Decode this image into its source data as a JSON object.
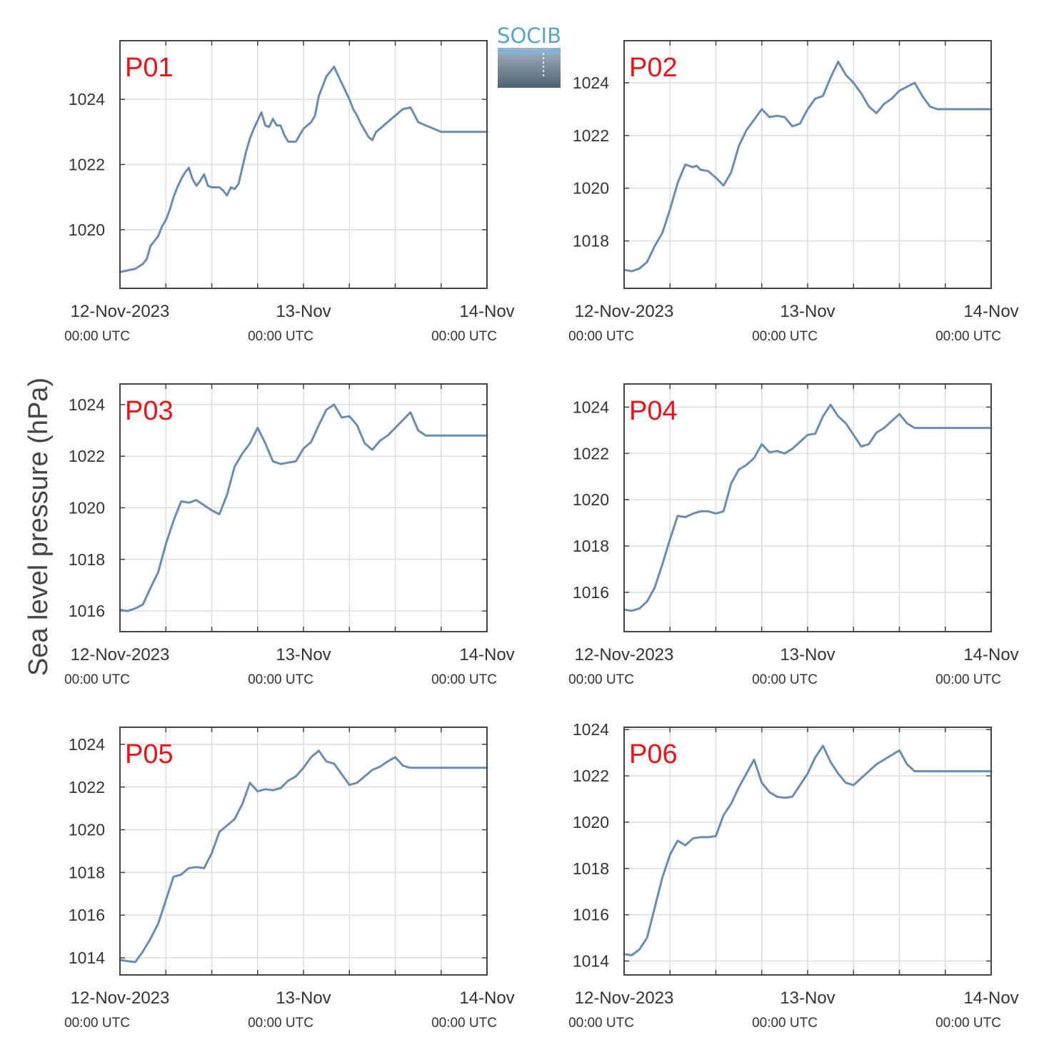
{
  "figure": {
    "ylabel": "Sea level pressure (hPa)",
    "logo_text": "SOCIB"
  },
  "colors": {
    "line": "#6a8cb0",
    "panel_label": "#e3141c",
    "grid": "#dcdcdc",
    "frame": "#444444"
  },
  "chart_data": [
    {
      "type": "line",
      "name": "P01",
      "ylim": [
        1018.2,
        1025.8
      ],
      "yticks": [
        1020,
        1022,
        1024
      ],
      "xlim": [
        0,
        48
      ],
      "xticks": [
        {
          "x": 0,
          "label": "12-Nov-2023",
          "sub": "00:00 UTC"
        },
        {
          "x": 24,
          "label": "13-Nov",
          "sub": "00:00 UTC"
        },
        {
          "x": 48,
          "label": "14-Nov",
          "sub": "00:00 UTC"
        }
      ],
      "x": [
        0,
        1,
        2,
        3,
        3.5,
        4,
        5,
        5.5,
        6,
        6.5,
        7,
        7.5,
        8,
        8.5,
        9,
        9.5,
        10,
        10.5,
        11,
        11.5,
        12,
        12.5,
        13,
        13.5,
        14,
        14.5,
        15,
        15.5,
        16,
        16.5,
        17,
        17.5,
        18,
        18.5,
        19,
        19.5,
        20,
        20.5,
        21,
        21.5,
        22,
        22.5,
        23,
        24,
        25,
        25.5,
        26,
        27,
        28,
        29,
        30,
        30.5,
        31,
        31.5,
        32,
        32.5,
        33,
        33.5,
        34,
        35,
        36,
        37,
        38,
        39,
        40,
        41,
        42,
        43,
        44,
        45,
        45.5,
        46,
        47,
        48
      ],
      "y": [
        1018.7,
        1018.75,
        1018.8,
        1018.95,
        1019.1,
        1019.5,
        1019.8,
        1020.1,
        1020.3,
        1020.6,
        1021.0,
        1021.3,
        1021.55,
        1021.75,
        1021.9,
        1021.55,
        1021.35,
        1021.5,
        1021.7,
        1021.35,
        1021.3,
        1021.3,
        1021.3,
        1021.2,
        1021.05,
        1021.3,
        1021.25,
        1021.4,
        1021.9,
        1022.4,
        1022.8,
        1023.1,
        1023.35,
        1023.6,
        1023.2,
        1023.15,
        1023.4,
        1023.2,
        1023.2,
        1022.9,
        1022.7,
        1022.7,
        1022.7,
        1023.1,
        1023.3,
        1023.5,
        1024.1,
        1024.7,
        1025.0,
        1024.5,
        1024.0,
        1023.7,
        1023.5,
        1023.25,
        1023.05,
        1022.85,
        1022.75,
        1023.0,
        1023.1,
        1023.3,
        1023.5,
        1023.7,
        1023.75,
        1023.3,
        1023.2,
        1023.1,
        1023.0,
        1023.0,
        1023.0,
        1023.0,
        1023.0,
        1023.0,
        1023.0,
        1023.0
      ]
    },
    {
      "type": "line",
      "name": "P02",
      "ylim": [
        1016.2,
        1025.6
      ],
      "yticks": [
        1018,
        1020,
        1022,
        1024
      ],
      "xlim": [
        0,
        48
      ],
      "xticks": [
        {
          "x": 0,
          "label": "12-Nov-2023",
          "sub": "00:00 UTC"
        },
        {
          "x": 24,
          "label": "13-Nov",
          "sub": "00:00 UTC"
        },
        {
          "x": 48,
          "label": "14-Nov",
          "sub": "00:00 UTC"
        }
      ],
      "x": [
        0,
        1,
        2,
        3,
        4,
        5,
        6,
        7,
        8,
        9,
        9.5,
        10,
        11,
        12,
        13,
        14,
        15,
        16,
        17,
        18,
        19,
        20,
        21,
        22,
        23,
        24,
        25,
        26,
        27,
        28,
        29,
        30,
        31,
        32,
        33,
        34,
        35,
        36,
        37,
        38,
        39,
        40,
        41,
        42,
        43,
        44,
        45,
        46,
        47,
        48
      ],
      "y": [
        1016.9,
        1016.85,
        1016.95,
        1017.2,
        1017.8,
        1018.3,
        1019.2,
        1020.2,
        1020.9,
        1020.8,
        1020.85,
        1020.7,
        1020.65,
        1020.4,
        1020.1,
        1020.6,
        1021.6,
        1022.2,
        1022.6,
        1023.0,
        1022.7,
        1022.75,
        1022.7,
        1022.35,
        1022.45,
        1023.0,
        1023.4,
        1023.5,
        1024.2,
        1024.8,
        1024.3,
        1024.0,
        1023.6,
        1023.1,
        1022.85,
        1023.2,
        1023.4,
        1023.7,
        1023.85,
        1024.0,
        1023.5,
        1023.1,
        1023.0,
        1023.0,
        1023.0,
        1023.0,
        1023.0,
        1023.0,
        1023.0,
        1023.0
      ]
    },
    {
      "type": "line",
      "name": "P03",
      "ylim": [
        1015.2,
        1024.8
      ],
      "yticks": [
        1016,
        1018,
        1020,
        1022,
        1024
      ],
      "xlim": [
        0,
        48
      ],
      "xticks": [
        {
          "x": 0,
          "label": "12-Nov-2023",
          "sub": "00:00 UTC"
        },
        {
          "x": 24,
          "label": "13-Nov",
          "sub": "00:00 UTC"
        },
        {
          "x": 48,
          "label": "14-Nov",
          "sub": "00:00 UTC"
        }
      ],
      "x": [
        0,
        1,
        2,
        3,
        4,
        5,
        6,
        7,
        8,
        9,
        10,
        11,
        12,
        13,
        14,
        15,
        16,
        17,
        18,
        19,
        20,
        21,
        22,
        23,
        24,
        25,
        26,
        27,
        28,
        29,
        30,
        31,
        32,
        33,
        34,
        35,
        36,
        37,
        38,
        39,
        40,
        41,
        42,
        43,
        44,
        45,
        46,
        47,
        48
      ],
      "y": [
        1016.05,
        1016.0,
        1016.1,
        1016.25,
        1016.9,
        1017.5,
        1018.6,
        1019.5,
        1020.25,
        1020.2,
        1020.3,
        1020.1,
        1019.9,
        1019.75,
        1020.5,
        1021.6,
        1022.1,
        1022.5,
        1023.1,
        1022.5,
        1021.8,
        1021.7,
        1021.75,
        1021.8,
        1022.3,
        1022.55,
        1023.2,
        1023.8,
        1024.0,
        1023.5,
        1023.55,
        1023.2,
        1022.5,
        1022.25,
        1022.6,
        1022.8,
        1023.1,
        1023.4,
        1023.7,
        1023.0,
        1022.8,
        1022.8,
        1022.8,
        1022.8,
        1022.8,
        1022.8,
        1022.8,
        1022.8,
        1022.8
      ]
    },
    {
      "type": "line",
      "name": "P04",
      "ylim": [
        1014.3,
        1025.0
      ],
      "yticks": [
        1016,
        1018,
        1020,
        1022,
        1024
      ],
      "xlim": [
        0,
        48
      ],
      "xticks": [
        {
          "x": 0,
          "label": "12-Nov-2023",
          "sub": "00:00 UTC"
        },
        {
          "x": 24,
          "label": "13-Nov",
          "sub": "00:00 UTC"
        },
        {
          "x": 48,
          "label": "14-Nov",
          "sub": "00:00 UTC"
        }
      ],
      "x": [
        0,
        1,
        2,
        3,
        4,
        5,
        6,
        7,
        8,
        9,
        10,
        11,
        12,
        13,
        14,
        15,
        16,
        17,
        18,
        19,
        20,
        21,
        22,
        23,
        24,
        25,
        26,
        27,
        28,
        29,
        30,
        31,
        32,
        33,
        34,
        35,
        36,
        37,
        38,
        39,
        40,
        41,
        42,
        43,
        44,
        45,
        46,
        47,
        48
      ],
      "y": [
        1015.25,
        1015.2,
        1015.3,
        1015.6,
        1016.2,
        1017.2,
        1018.3,
        1019.3,
        1019.25,
        1019.4,
        1019.5,
        1019.5,
        1019.4,
        1019.5,
        1020.7,
        1021.3,
        1021.5,
        1021.8,
        1022.4,
        1022.05,
        1022.1,
        1022.0,
        1022.2,
        1022.5,
        1022.8,
        1022.85,
        1023.6,
        1024.1,
        1023.6,
        1023.3,
        1022.8,
        1022.3,
        1022.4,
        1022.9,
        1023.1,
        1023.4,
        1023.7,
        1023.3,
        1023.1,
        1023.1,
        1023.1,
        1023.1,
        1023.1,
        1023.1,
        1023.1,
        1023.1,
        1023.1,
        1023.1,
        1023.1
      ]
    },
    {
      "type": "line",
      "name": "P05",
      "ylim": [
        1013.2,
        1024.8
      ],
      "yticks": [
        1014,
        1016,
        1018,
        1020,
        1022,
        1024
      ],
      "xlim": [
        0,
        48
      ],
      "xticks": [
        {
          "x": 0,
          "label": "12-Nov-2023",
          "sub": "00:00 UTC"
        },
        {
          "x": 24,
          "label": "13-Nov",
          "sub": "00:00 UTC"
        },
        {
          "x": 48,
          "label": "14-Nov",
          "sub": "00:00 UTC"
        }
      ],
      "x": [
        0,
        1,
        2,
        3,
        4,
        5,
        6,
        7,
        8,
        9,
        10,
        11,
        12,
        13,
        14,
        15,
        16,
        17,
        18,
        19,
        20,
        21,
        22,
        23,
        24,
        25,
        26,
        27,
        28,
        29,
        30,
        31,
        32,
        33,
        34,
        35,
        36,
        37,
        38,
        39,
        40,
        41,
        42,
        43,
        44,
        45,
        46,
        47,
        48
      ],
      "y": [
        1013.9,
        1013.85,
        1013.8,
        1014.3,
        1014.9,
        1015.6,
        1016.7,
        1017.8,
        1017.9,
        1018.2,
        1018.25,
        1018.2,
        1018.9,
        1019.9,
        1020.2,
        1020.5,
        1021.2,
        1022.2,
        1021.8,
        1021.9,
        1021.85,
        1021.95,
        1022.3,
        1022.5,
        1022.9,
        1023.4,
        1023.7,
        1023.2,
        1023.1,
        1022.6,
        1022.1,
        1022.2,
        1022.5,
        1022.8,
        1022.95,
        1023.2,
        1023.4,
        1023.0,
        1022.9,
        1022.9,
        1022.9,
        1022.9,
        1022.9,
        1022.9,
        1022.9,
        1022.9,
        1022.9,
        1022.9,
        1022.9
      ]
    },
    {
      "type": "line",
      "name": "P06",
      "ylim": [
        1013.4,
        1024.1
      ],
      "yticks": [
        1014,
        1016,
        1018,
        1020,
        1022,
        1024
      ],
      "xlim": [
        0,
        48
      ],
      "xticks": [
        {
          "x": 0,
          "label": "12-Nov-2023",
          "sub": "00:00 UTC"
        },
        {
          "x": 24,
          "label": "13-Nov",
          "sub": "00:00 UTC"
        },
        {
          "x": 48,
          "label": "14-Nov",
          "sub": "00:00 UTC"
        }
      ],
      "x": [
        0,
        1,
        2,
        3,
        4,
        5,
        6,
        7,
        8,
        9,
        10,
        11,
        12,
        13,
        14,
        15,
        16,
        17,
        18,
        19,
        20,
        21,
        22,
        23,
        24,
        25,
        26,
        27,
        28,
        29,
        30,
        31,
        32,
        33,
        34,
        35,
        36,
        37,
        38,
        39,
        40,
        41,
        42,
        43,
        44,
        45,
        46,
        47,
        48
      ],
      "y": [
        1014.3,
        1014.25,
        1014.5,
        1015.0,
        1016.3,
        1017.6,
        1018.6,
        1019.2,
        1019.0,
        1019.3,
        1019.35,
        1019.35,
        1019.4,
        1020.3,
        1020.8,
        1021.5,
        1022.1,
        1022.7,
        1021.7,
        1021.3,
        1021.1,
        1021.05,
        1021.1,
        1021.6,
        1022.1,
        1022.8,
        1023.3,
        1022.6,
        1022.1,
        1021.7,
        1021.6,
        1021.9,
        1022.2,
        1022.5,
        1022.7,
        1022.9,
        1023.1,
        1022.5,
        1022.2,
        1022.2,
        1022.2,
        1022.2,
        1022.2,
        1022.2,
        1022.2,
        1022.2,
        1022.2,
        1022.2,
        1022.2
      ]
    }
  ]
}
